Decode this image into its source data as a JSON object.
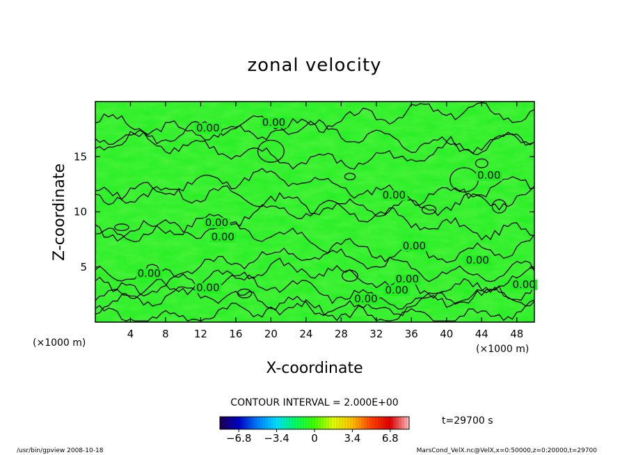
{
  "chart_data": {
    "type": "heatmap",
    "title": "zonal velocity",
    "xlabel": "X-coordinate",
    "ylabel": "Z-coordinate",
    "x_unit": "(×1000 m)",
    "y_unit": "(×1000 m)",
    "x_ticks": [
      4,
      8,
      12,
      16,
      20,
      24,
      28,
      32,
      36,
      40,
      44,
      48
    ],
    "y_ticks": [
      5,
      10,
      15
    ],
    "xlim": [
      0,
      50
    ],
    "ylim": [
      0,
      20
    ],
    "contour_interval_text": "CONTOUR INTERVAL = 2.000E+00",
    "contour_label": "0.00",
    "time_label": "t=29700 s",
    "colorbar": {
      "tick_labels": [
        "−6.8",
        "−3.4",
        "0",
        "3.4",
        "6.8"
      ],
      "tick_values": [
        -6.8,
        -3.4,
        0,
        3.4,
        6.8
      ],
      "range": [
        -8.5,
        8.5
      ],
      "colors": [
        "#1a0050",
        "#0000c8",
        "#0080ff",
        "#00e0ff",
        "#00ff60",
        "#40ff00",
        "#e0ff00",
        "#ffc000",
        "#ff4000",
        "#e00000",
        "#ffc0c0"
      ]
    },
    "field_color": "#22ee22",
    "contour_levels_labeled": [
      {
        "x": 19.0,
        "y": 17.8
      },
      {
        "x": 11.5,
        "y": 17.3
      },
      {
        "x": 32.7,
        "y": 11.2
      },
      {
        "x": 12.5,
        "y": 8.7
      },
      {
        "x": 13.2,
        "y": 7.4
      },
      {
        "x": 35.0,
        "y": 6.6
      },
      {
        "x": 42.2,
        "y": 5.3
      },
      {
        "x": 4.8,
        "y": 4.1
      },
      {
        "x": 34.2,
        "y": 3.6
      },
      {
        "x": 11.5,
        "y": 2.8
      },
      {
        "x": 33.0,
        "y": 2.6
      },
      {
        "x": 29.5,
        "y": 1.8
      },
      {
        "x": 47.5,
        "y": 3.1
      },
      {
        "x": 43.5,
        "y": 13.0
      }
    ]
  },
  "footer": {
    "left": "/usr/bin/gpview   2008-10-18",
    "right": "MarsCond_VelX.nc@VelX,x=0:50000,z=0:20000,t=29700"
  }
}
